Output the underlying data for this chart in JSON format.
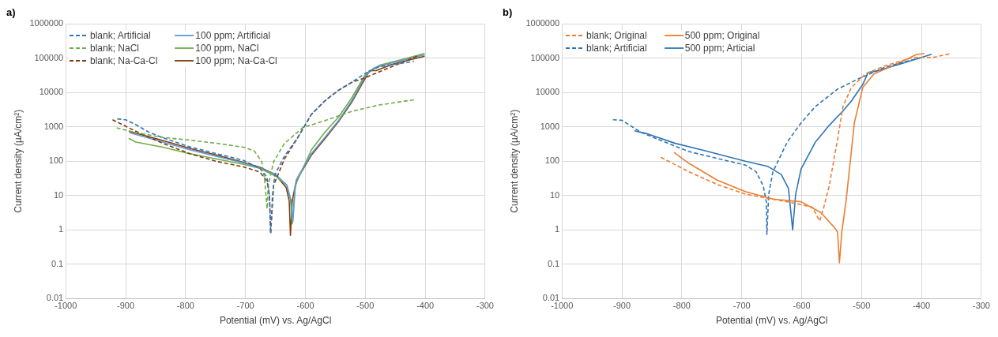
{
  "chart_data": [
    {
      "type": "line",
      "title": "a)",
      "xlabel": "Potential (mV) vs. Ag/AgCl",
      "ylabel": "Current density (µA/cm²)",
      "xlim": [
        -1000,
        -300
      ],
      "xticks": [
        -1000,
        -900,
        -800,
        -700,
        -600,
        -500,
        -400,
        -300
      ],
      "ylim": [
        0.01,
        1000000
      ],
      "yticks": [
        0.01,
        0.1,
        1,
        10,
        100,
        1000,
        10000,
        100000,
        1000000
      ],
      "log": "y",
      "grid": true,
      "legend": "top left",
      "marker": "none",
      "series": [
        {
          "name": "blank; Artificial",
          "color": "#2e75b6",
          "line_style": "dashed",
          "x": [
            -914,
            -900,
            -883,
            -860,
            -838,
            -793,
            -748,
            -703,
            -676,
            -664,
            -660,
            -658,
            -655,
            -651,
            -635,
            -613,
            -590,
            -568,
            -545,
            -523,
            -500,
            -477,
            -419
          ],
          "values": [
            1700,
            1600,
            1150,
            680,
            480,
            260,
            165,
            105,
            62,
            34,
            9.8,
            0.76,
            10,
            40,
            140,
            480,
            2300,
            5600,
            11500,
            19500,
            36000,
            56000,
            80000
          ]
        },
        {
          "name": "blank; NaCl",
          "color": "#70ad47",
          "line_style": "dashed",
          "x": [
            -915,
            -883,
            -838,
            -793,
            -748,
            -703,
            -685,
            -673,
            -668,
            -664,
            -662,
            -653,
            -635,
            -604,
            -568,
            -523,
            -477,
            -419
          ],
          "values": [
            930,
            680,
            490,
            410,
            330,
            255,
            195,
            97,
            28,
            4.1,
            20,
            97,
            330,
            960,
            1500,
            2800,
            4300,
            6100
          ]
        },
        {
          "name": "blank; Na-Ca-Cl",
          "color": "#843c0c",
          "line_style": "dashed",
          "x": [
            -922,
            -883,
            -838,
            -793,
            -748,
            -703,
            -676,
            -664,
            -660,
            -658,
            -653,
            -635,
            -613,
            -590,
            -568,
            -545,
            -523,
            -500,
            -410
          ],
          "values": [
            1600,
            740,
            330,
            165,
            98,
            68,
            48,
            26,
            10,
            0.8,
            20,
            115,
            480,
            2300,
            5600,
            11500,
            19500,
            27000,
            120000
          ]
        },
        {
          "name": "100 ppm; Artificial",
          "color": "#5b9bd5",
          "line_style": "solid",
          "x": [
            -894,
            -838,
            -793,
            -748,
            -703,
            -676,
            -649,
            -631,
            -624,
            -621,
            -617,
            -613,
            -590,
            -568,
            -545,
            -523,
            -500,
            -486,
            -455,
            -401
          ],
          "values": [
            680,
            360,
            215,
            138,
            89,
            62,
            40,
            20,
            6.9,
            1.7,
            17,
            34,
            165,
            480,
            1500,
            5600,
            30000,
            51000,
            73000,
            124000
          ]
        },
        {
          "name": "100 ppm, NaCl",
          "color": "#70ad47",
          "line_style": "solid",
          "x": [
            -895,
            -883,
            -838,
            -793,
            -748,
            -703,
            -676,
            -649,
            -631,
            -625,
            -622,
            -617,
            -590,
            -568,
            -545,
            -523,
            -500,
            -477,
            -401
          ],
          "values": [
            460,
            360,
            255,
            165,
            115,
            81,
            62,
            36,
            20,
            8.1,
            1.5,
            20,
            215,
            680,
            1900,
            6800,
            33000,
            61000,
            135000
          ]
        },
        {
          "name": "100 ppm; Na-Ca-Cl",
          "color": "#843c0c",
          "line_style": "solid",
          "x": [
            -895,
            -838,
            -793,
            -748,
            -703,
            -676,
            -651,
            -632,
            -627,
            -625,
            -622,
            -615,
            -590,
            -568,
            -545,
            -523,
            -493,
            -482,
            -455,
            -401
          ],
          "values": [
            740,
            400,
            235,
            150,
            92,
            66,
            42,
            17,
            6.9,
            0.69,
            6.9,
            28,
            150,
            440,
            1400,
            5100,
            43000,
            43000,
            66000,
            113000
          ]
        }
      ]
    },
    {
      "type": "line",
      "title": "b)",
      "xlabel": "Potential (mV) vs. Ag/AgCl",
      "ylabel": "Current density (µA/cm²)",
      "xlim": [
        -1000,
        -300
      ],
      "xticks": [
        -1000,
        -900,
        -800,
        -700,
        -600,
        -500,
        -400,
        -300
      ],
      "ylim": [
        0.01,
        1000000
      ],
      "yticks": [
        0.01,
        0.1,
        1,
        10,
        100,
        1000,
        10000,
        100000,
        1000000
      ],
      "log": "y",
      "grid": true,
      "legend": "top left",
      "marker": "none",
      "series": [
        {
          "name": "blank; Original",
          "color": "#ed7d31",
          "line_style": "dashed",
          "x": [
            -835,
            -788,
            -741,
            -694,
            -662,
            -624,
            -582,
            -570,
            -563,
            -554,
            -540,
            -531,
            -517,
            -493,
            -460,
            -414,
            -381,
            -350
          ],
          "values": [
            130,
            49,
            21,
            11,
            8.6,
            6.6,
            4.6,
            1.8,
            4.6,
            19,
            440,
            3900,
            14000,
            35000,
            60000,
            104000,
            104000,
            136000
          ]
        },
        {
          "name": "blank; Artificial",
          "color": "#2e75b6",
          "line_style": "dashed",
          "x": [
            -915,
            -900,
            -882,
            -868,
            -835,
            -788,
            -741,
            -694,
            -676,
            -664,
            -659,
            -658,
            -655,
            -648,
            -624,
            -601,
            -577,
            -540,
            -507,
            -460,
            -400
          ],
          "values": [
            1600,
            1550,
            980,
            690,
            400,
            190,
            120,
            77,
            49,
            19,
            6.6,
            0.74,
            11,
            49,
            360,
            1300,
            3900,
            12500,
            24000,
            55000,
            104000
          ]
        },
        {
          "name": "500 ppm; Original",
          "color": "#ed7d31",
          "line_style": "solid",
          "x": [
            -813,
            -788,
            -741,
            -694,
            -648,
            -601,
            -568,
            -545,
            -540,
            -537,
            -533,
            -526,
            -512,
            -498,
            -479,
            -437,
            -409,
            -395
          ],
          "values": [
            180,
            86,
            28,
            13,
            7.9,
            6.6,
            3.2,
            1.15,
            0.87,
            0.11,
            0.87,
            6.6,
            1300,
            14000,
            35000,
            72000,
            125000,
            136000
          ]
        },
        {
          "name": "500 ppm; Articial",
          "color": "#2e75b6",
          "line_style": "solid",
          "x": [
            -879,
            -858,
            -811,
            -765,
            -694,
            -657,
            -634,
            -622,
            -615,
            -610,
            -601,
            -577,
            -554,
            -531,
            -517,
            -498,
            -489,
            -475,
            -437,
            -383
          ],
          "values": [
            760,
            630,
            330,
            210,
            100,
            71,
            41,
            16,
            1.0,
            11,
            59,
            360,
            1100,
            2900,
            5600,
            17000,
            38000,
            42000,
            66000,
            129000
          ]
        }
      ]
    }
  ]
}
